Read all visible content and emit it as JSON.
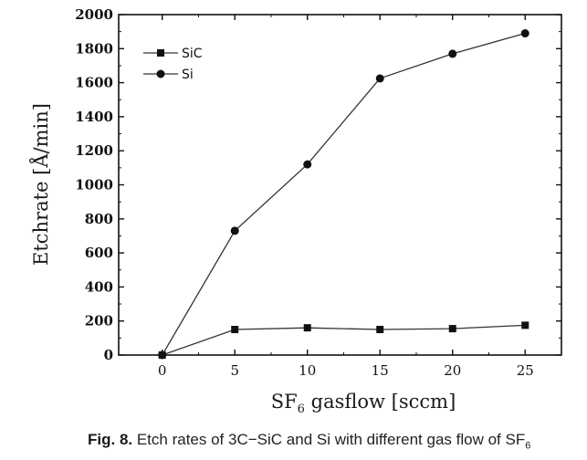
{
  "chart_data": {
    "type": "line",
    "x": [
      0,
      5,
      10,
      15,
      20,
      25
    ],
    "x_ticks": [
      "0",
      "5",
      "10",
      "15",
      "20",
      "25"
    ],
    "y_ticks": [
      "0",
      "200",
      "400",
      "600",
      "800",
      "1000",
      "1200",
      "1400",
      "1600",
      "1800",
      "2000"
    ],
    "xlabel": "SF",
    "xlabel_sub": "6",
    "xlabel_rest": " gasflow [sccm]",
    "ylabel": "Etchrate [Å/min]",
    "xlim": [
      -3,
      27.5
    ],
    "ylim": [
      0,
      2000
    ],
    "grid": false,
    "legend_position": "top-left",
    "series": [
      {
        "name": "SiC",
        "marker": "square",
        "values": [
          0,
          150,
          160,
          150,
          155,
          175
        ]
      },
      {
        "name": "Si",
        "marker": "circle",
        "values": [
          0,
          730,
          1120,
          1625,
          1770,
          1890
        ]
      }
    ],
    "colors": {
      "line": "#333333",
      "marker": "#111111",
      "axis": "#111111"
    }
  },
  "caption": {
    "fig": "Fig. 8.",
    "text": " Etch rates of 3C−SiC and Si with different gas flow of SF",
    "sub": "6"
  }
}
